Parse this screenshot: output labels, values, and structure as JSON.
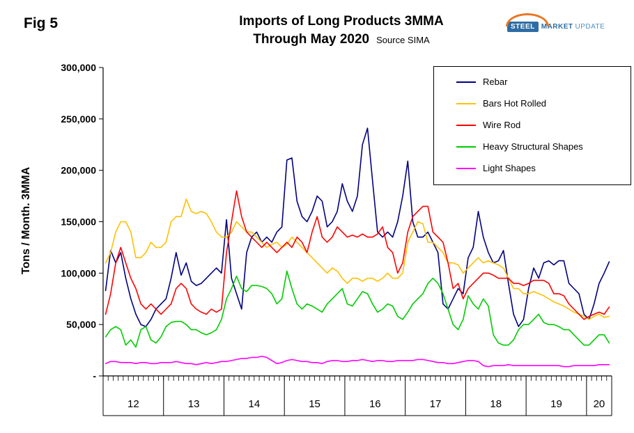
{
  "header": {
    "fig_label": "Fig 5",
    "title_line1": "Imports of Long Products 3MMA",
    "title_line2": "Through May 2020",
    "source": "Source SIMA"
  },
  "logo": {
    "steel": "STEEL",
    "market": "MARKET",
    "update": "UPDATE"
  },
  "axis": {
    "y_title": "Tons / Month. 3MMA",
    "y_tick_labels": [
      "300,000",
      "250,000",
      "200,000",
      "150,000",
      "100,000",
      "50,000",
      "-"
    ]
  },
  "chart_data": {
    "type": "line",
    "title": "Imports of Long Products 3MMA Through May 2020",
    "source": "Source SIMA",
    "ylabel": "Tons / Month. 3MMA",
    "ylim": [
      0,
      300000
    ],
    "grid": false,
    "legend_position": "top-right",
    "x_years": [
      "12",
      "13",
      "14",
      "15",
      "16",
      "17",
      "18",
      "19",
      "20"
    ],
    "months_per_year": [
      12,
      12,
      12,
      12,
      12,
      12,
      12,
      12,
      5
    ],
    "series": [
      {
        "name": "Rebar",
        "color": "#000080",
        "values": [
          83000,
          122000,
          110000,
          120000,
          95000,
          75000,
          60000,
          50000,
          48000,
          55000,
          65000,
          70000,
          75000,
          95000,
          120000,
          98000,
          110000,
          92000,
          88000,
          90000,
          95000,
          100000,
          105000,
          100000,
          152000,
          95000,
          80000,
          65000,
          120000,
          135000,
          140000,
          130000,
          135000,
          130000,
          140000,
          145000,
          210000,
          212000,
          170000,
          155000,
          150000,
          160000,
          175000,
          170000,
          145000,
          150000,
          160000,
          187000,
          170000,
          160000,
          175000,
          225000,
          241000,
          190000,
          140000,
          135000,
          140000,
          135000,
          150000,
          175000,
          209000,
          150000,
          135000,
          135000,
          140000,
          130000,
          120000,
          70000,
          65000,
          75000,
          85000,
          80000,
          115000,
          125000,
          160000,
          135000,
          120000,
          110000,
          112000,
          122000,
          90000,
          60000,
          48000,
          55000,
          85000,
          105000,
          95000,
          110000,
          112000,
          108000,
          112000,
          112000,
          90000,
          85000,
          80000,
          60000,
          55000,
          70000,
          90000,
          100000,
          111000
        ]
      },
      {
        "name": "Bars Hot Rolled",
        "color": "#FFC000",
        "values": [
          110000,
          120000,
          140000,
          150000,
          150000,
          140000,
          115000,
          115000,
          120000,
          130000,
          125000,
          125000,
          130000,
          150000,
          155000,
          155000,
          172000,
          160000,
          158000,
          160000,
          158000,
          150000,
          140000,
          135000,
          135000,
          140000,
          150000,
          145000,
          140000,
          140000,
          135000,
          130000,
          125000,
          128000,
          130000,
          125000,
          128000,
          135000,
          130000,
          125000,
          120000,
          115000,
          110000,
          105000,
          100000,
          105000,
          102000,
          95000,
          90000,
          95000,
          95000,
          92000,
          95000,
          95000,
          92000,
          95000,
          100000,
          95000,
          95000,
          100000,
          130000,
          140000,
          150000,
          148000,
          130000,
          130000,
          125000,
          120000,
          110000,
          110000,
          108000,
          100000,
          105000,
          110000,
          115000,
          110000,
          112000,
          110000,
          108000,
          105000,
          95000,
          85000,
          85000,
          80000,
          80000,
          82000,
          80000,
          78000,
          75000,
          72000,
          70000,
          68000,
          65000,
          62000,
          60000,
          58000,
          55000,
          58000,
          60000,
          57000,
          58000
        ]
      },
      {
        "name": "Wire Rod",
        "color": "#FF0000",
        "values": [
          60000,
          80000,
          110000,
          125000,
          110000,
          95000,
          85000,
          70000,
          65000,
          70000,
          65000,
          60000,
          65000,
          70000,
          85000,
          90000,
          85000,
          70000,
          65000,
          62000,
          60000,
          65000,
          62000,
          65000,
          120000,
          150000,
          180000,
          155000,
          140000,
          135000,
          130000,
          125000,
          130000,
          125000,
          120000,
          125000,
          130000,
          125000,
          135000,
          130000,
          120000,
          140000,
          155000,
          135000,
          130000,
          135000,
          145000,
          140000,
          135000,
          137000,
          135000,
          138000,
          135000,
          135000,
          138000,
          145000,
          125000,
          120000,
          100000,
          110000,
          140000,
          155000,
          160000,
          165000,
          165000,
          140000,
          135000,
          130000,
          110000,
          85000,
          90000,
          75000,
          85000,
          90000,
          95000,
          100000,
          100000,
          98000,
          95000,
          95000,
          95000,
          90000,
          90000,
          88000,
          90000,
          93000,
          93000,
          93000,
          90000,
          80000,
          80000,
          78000,
          70000,
          65000,
          60000,
          55000,
          58000,
          60000,
          62000,
          60000,
          67000
        ]
      },
      {
        "name": "Heavy Structural Shapes",
        "color": "#00CC00",
        "values": [
          38000,
          45000,
          48000,
          45000,
          30000,
          35000,
          28000,
          45000,
          48000,
          35000,
          32000,
          38000,
          48000,
          52000,
          53000,
          53000,
          50000,
          45000,
          45000,
          42000,
          40000,
          42000,
          45000,
          55000,
          75000,
          85000,
          97000,
          85000,
          82000,
          88000,
          88000,
          87000,
          85000,
          80000,
          70000,
          75000,
          102000,
          85000,
          70000,
          65000,
          70000,
          68000,
          65000,
          62000,
          70000,
          75000,
          80000,
          85000,
          70000,
          68000,
          75000,
          82000,
          80000,
          70000,
          62000,
          65000,
          70000,
          68000,
          58000,
          55000,
          62000,
          70000,
          75000,
          80000,
          90000,
          95000,
          90000,
          80000,
          65000,
          50000,
          45000,
          55000,
          78000,
          70000,
          65000,
          75000,
          68000,
          40000,
          32000,
          30000,
          30000,
          35000,
          45000,
          50000,
          50000,
          55000,
          60000,
          52000,
          50000,
          50000,
          48000,
          45000,
          45000,
          40000,
          35000,
          30000,
          30000,
          35000,
          40000,
          40000,
          32000
        ]
      },
      {
        "name": "Light Shapes",
        "color": "#FF00FF",
        "values": [
          12000,
          14000,
          14000,
          13000,
          13000,
          13000,
          12000,
          13000,
          13000,
          12000,
          12000,
          13000,
          13000,
          13000,
          14000,
          13000,
          12000,
          12000,
          11000,
          12000,
          13000,
          12000,
          13000,
          14000,
          14000,
          15000,
          16000,
          17000,
          17000,
          18000,
          18000,
          19000,
          18000,
          15000,
          12000,
          13000,
          15000,
          16000,
          15000,
          14000,
          14000,
          13000,
          13000,
          12000,
          14000,
          15000,
          15000,
          14000,
          14000,
          15000,
          15000,
          16000,
          15000,
          14000,
          15000,
          15000,
          14000,
          14000,
          15000,
          15000,
          15000,
          15000,
          16000,
          16000,
          15000,
          14000,
          13000,
          13000,
          12000,
          12000,
          13000,
          14000,
          15000,
          15000,
          14000,
          10000,
          9000,
          10000,
          10000,
          10000,
          11000,
          10000,
          10000,
          10000,
          10000,
          10000,
          10000,
          10000,
          10000,
          10000,
          10000,
          9000,
          9000,
          10000,
          10000,
          10000,
          10000,
          10000,
          11000,
          11000,
          11000
        ]
      }
    ]
  }
}
